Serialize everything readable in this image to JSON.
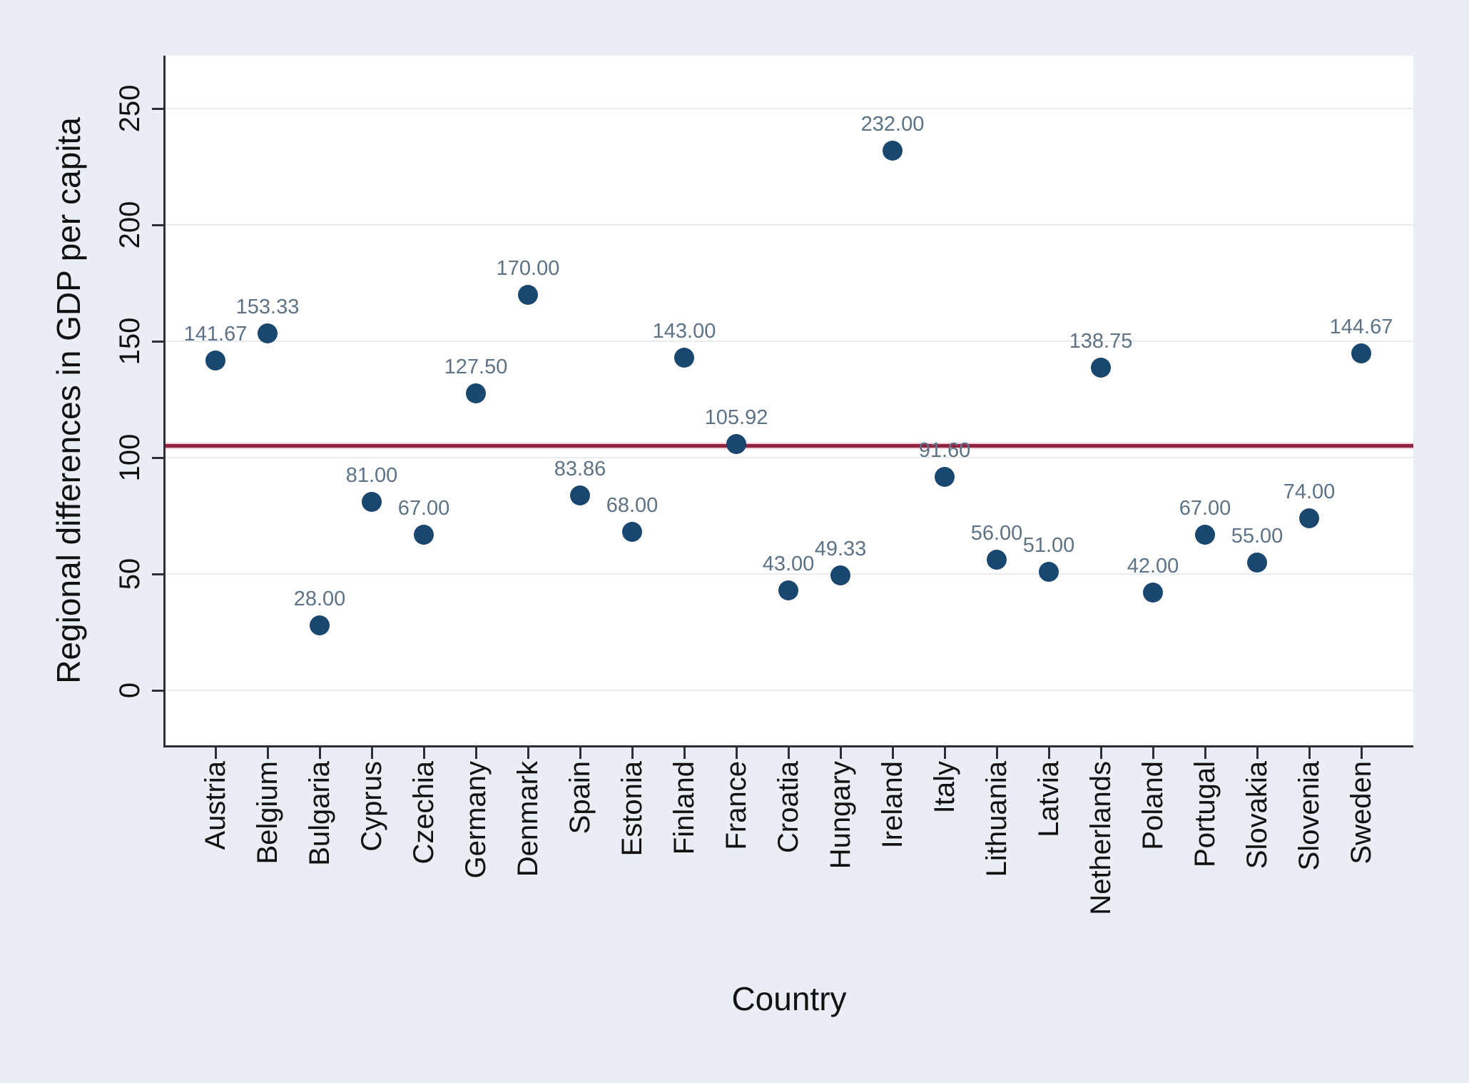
{
  "figure": {
    "background_color": "#e8eef3",
    "plot_background_color": "#ffffff",
    "grid_color": "#e7ecf0",
    "axis_color": "#2b2e33",
    "text_color": "#111111"
  },
  "chart_data": {
    "type": "scatter",
    "title": "",
    "xlabel": "Country",
    "ylabel": "Regional differences in GDP per capita",
    "categories": [
      "Austria",
      "Belgium",
      "Bulgaria",
      "Cyprus",
      "Czechia",
      "Germany",
      "Denmark",
      "Spain",
      "Estonia",
      "Finland",
      "France",
      "Croatia",
      "Hungary",
      "Ireland",
      "Italy",
      "Lithuania",
      "Latvia",
      "Netherlands",
      "Poland",
      "Portugal",
      "Slovakia",
      "Slovenia",
      "Sweden"
    ],
    "values": [
      141.67,
      153.33,
      28.0,
      81.0,
      67.0,
      127.5,
      170.0,
      83.86,
      68.0,
      143.0,
      105.92,
      43.0,
      49.33,
      232.0,
      91.6,
      56.0,
      51.0,
      138.75,
      42.0,
      67.0,
      55.0,
      74.0,
      144.67
    ],
    "point_labels": [
      "141.67",
      "153.33",
      "28.00",
      "81.00",
      "67.00",
      "127.50",
      "170.00",
      "83.86",
      "68.00",
      "143.00",
      "105.92",
      "43.00",
      "49.33",
      "232.00",
      "91.60",
      "56.00",
      "51.00",
      "138.75",
      "42.00",
      "67.00",
      "55.00",
      "74.00",
      "144.67"
    ],
    "yticks": [
      0,
      50,
      100,
      150,
      200,
      250
    ],
    "ylim": [
      -24,
      272
    ],
    "grid": "horizontal",
    "legend_position": "none",
    "marker_color": "#1a476f",
    "point_label_color": "#5d7285",
    "reference_line": {
      "value": 105,
      "color": "#8f2440",
      "halo_color": "#f2ccd9"
    }
  }
}
